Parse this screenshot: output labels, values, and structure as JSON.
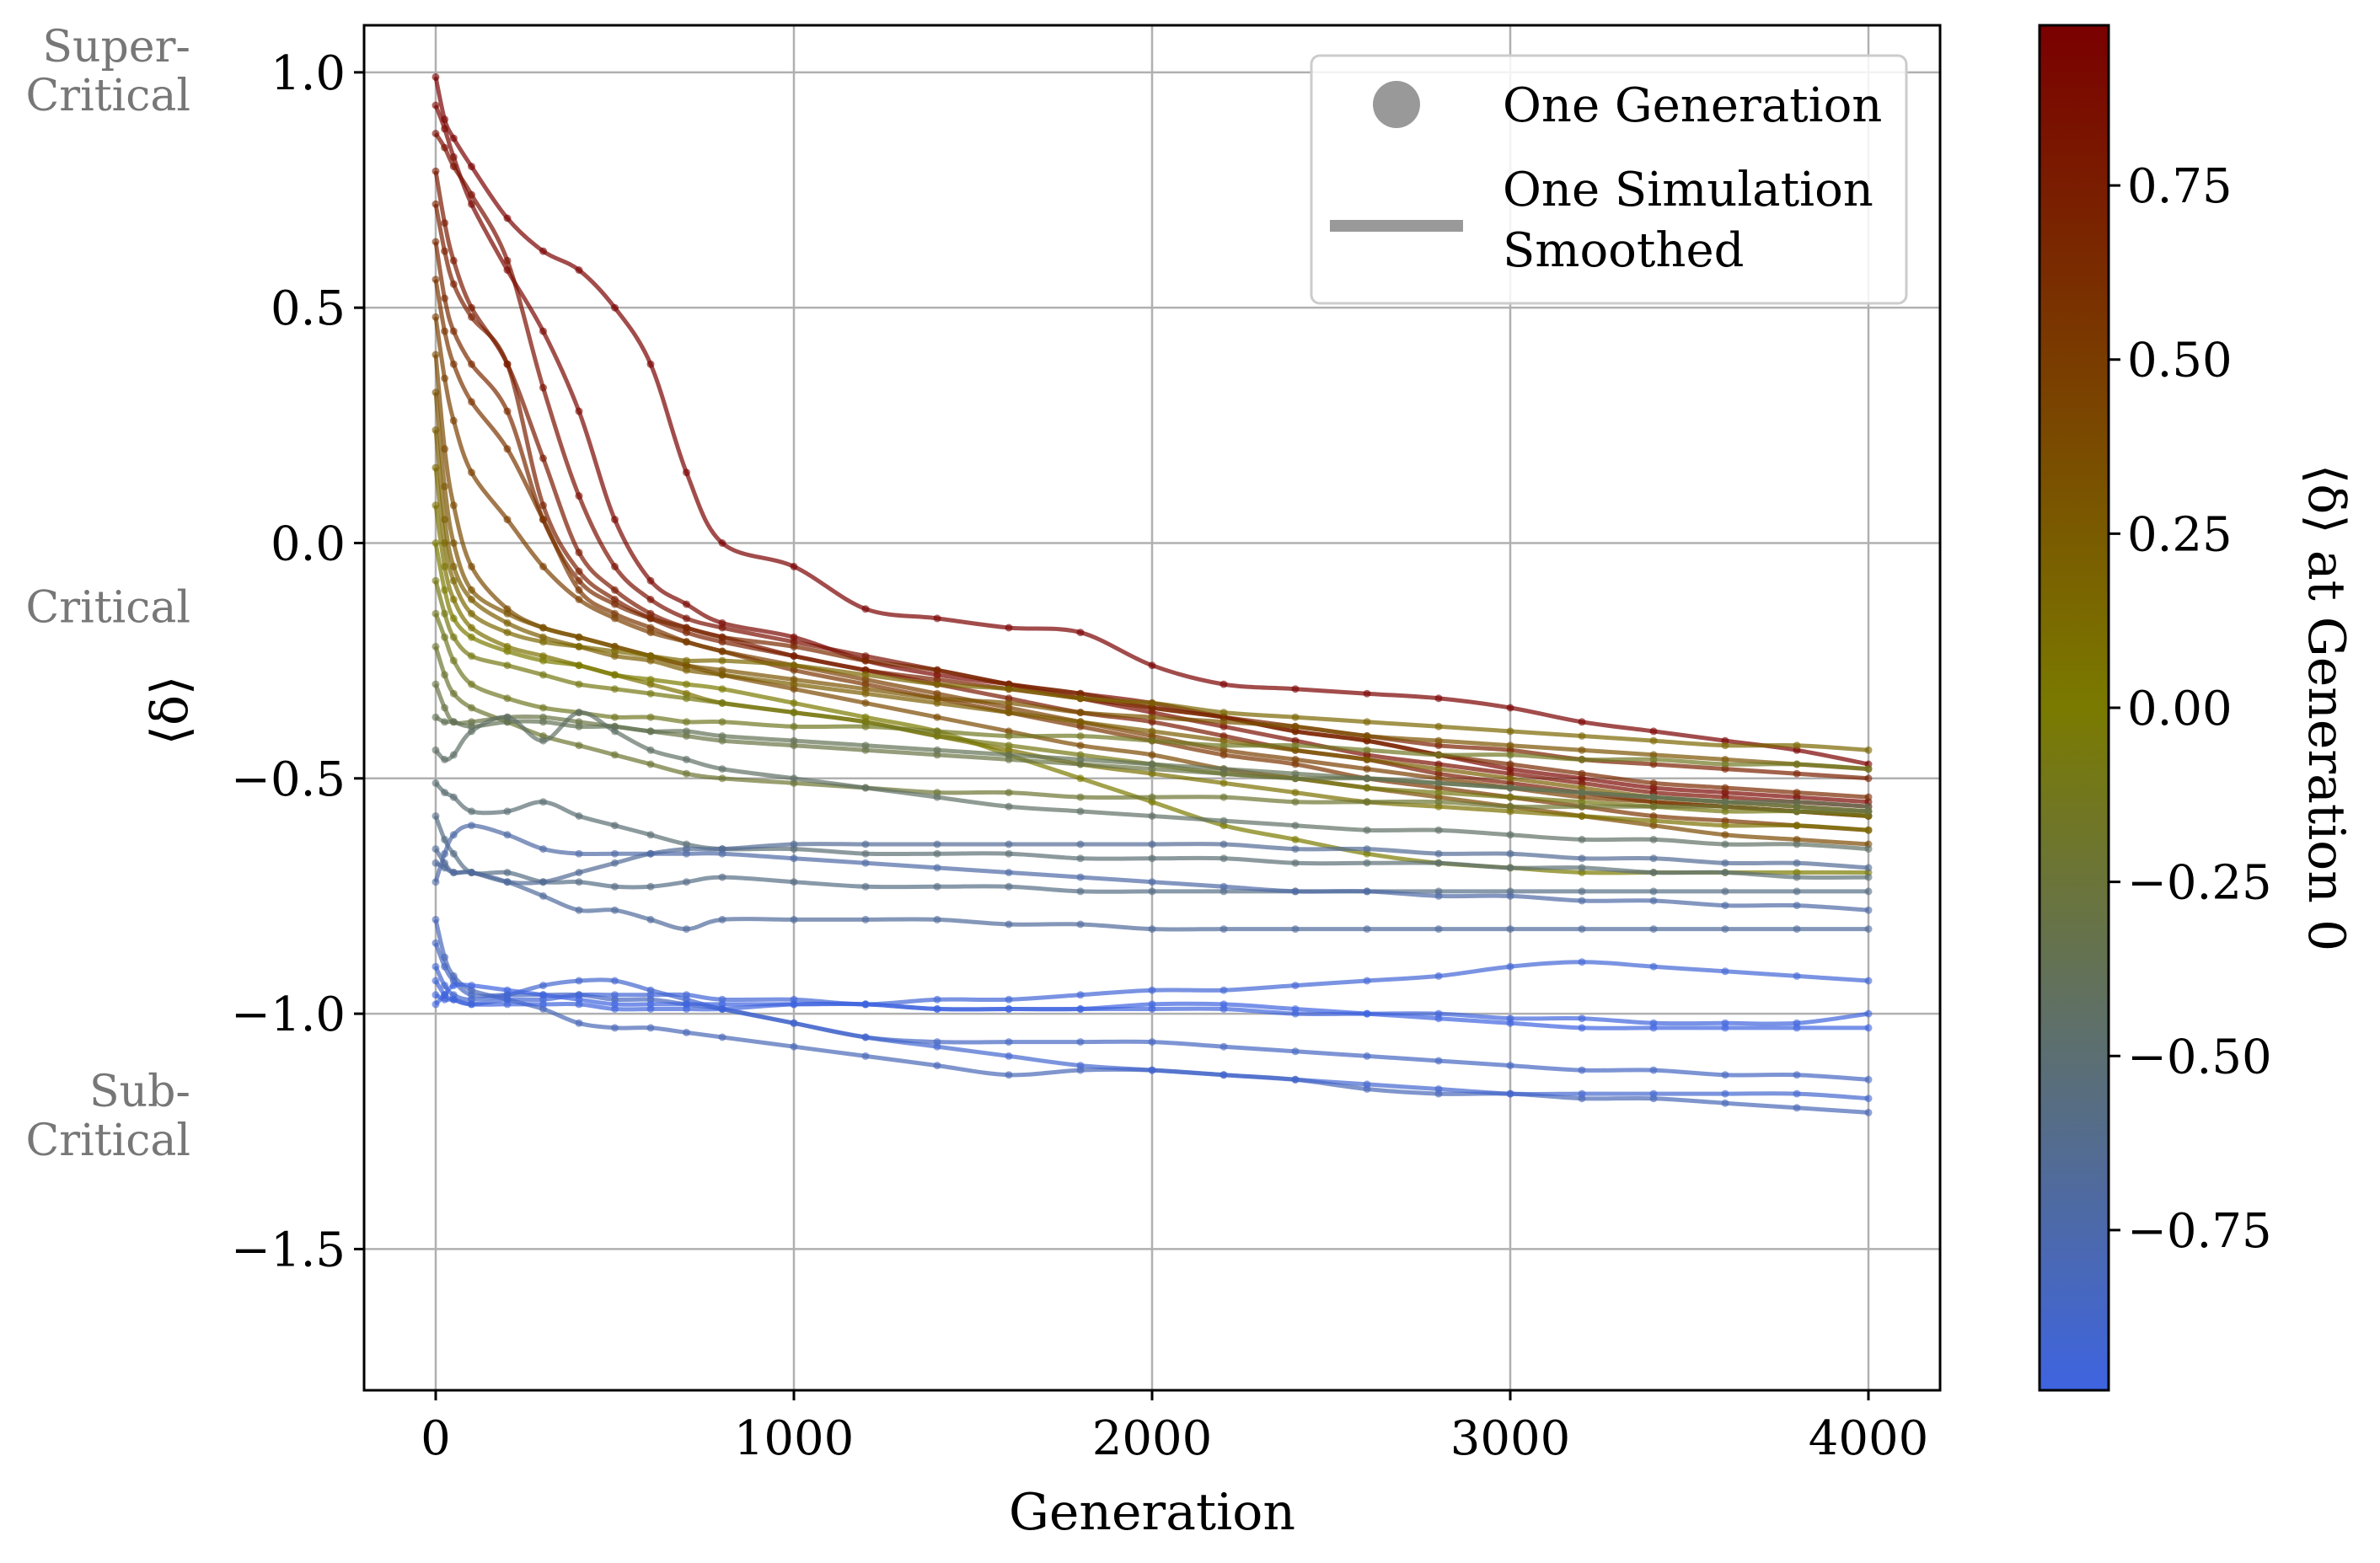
{
  "chart_data": {
    "type": "line",
    "xlabel": "Generation",
    "ylabel": "⟨δ⟩",
    "xlim": [
      -200,
      4200
    ],
    "ylim": [
      -1.8,
      1.1
    ],
    "xticks": [
      0,
      1000,
      2000,
      3000,
      4000
    ],
    "xtick_labels": [
      "0",
      "1000",
      "2000",
      "3000",
      "4000"
    ],
    "yticks": [
      1.0,
      0.5,
      0.0,
      -0.5,
      -1.0,
      -1.5
    ],
    "ytick_labels": [
      "1.0",
      "0.5",
      "0.0",
      "−0.5",
      "−1.0",
      "−1.5"
    ],
    "grid": true,
    "region_labels": [
      {
        "y": 1.0,
        "lines": [
          "Super-",
          "Critical"
        ]
      },
      {
        "y": -0.14,
        "lines": [
          "Critical"
        ]
      },
      {
        "y": -1.22,
        "lines": [
          "Sub-",
          "Critical"
        ]
      }
    ],
    "legend": {
      "placement": "top-right",
      "entries": [
        {
          "marker": "dot",
          "lines": [
            "One Generation"
          ]
        },
        {
          "marker": "line",
          "lines": [
            "One Simulation",
            "Smoothed"
          ]
        }
      ]
    },
    "colorbar": {
      "label": "⟨δ⟩ at Generation 0",
      "range": [
        -0.98,
        0.98
      ],
      "ticks": [
        0.75,
        0.5,
        0.25,
        0.0,
        -0.25,
        -0.5,
        -0.75
      ],
      "tick_labels": [
        "0.75",
        "0.50",
        "0.25",
        "0.00",
        "−0.25",
        "−0.50",
        "−0.75"
      ],
      "stops": [
        "#3e64e0",
        "#7a7a00",
        "#7a0000"
      ]
    },
    "x": [
      0,
      25,
      50,
      100,
      200,
      300,
      400,
      500,
      600,
      700,
      800,
      1000,
      1200,
      1400,
      1600,
      1800,
      2000,
      2200,
      2400,
      2600,
      2800,
      3000,
      3200,
      3400,
      3600,
      3800,
      4000
    ],
    "series": [
      {
        "g0": 0.99,
        "values": [
          0.99,
          0.9,
          0.86,
          0.8,
          0.69,
          0.62,
          0.58,
          0.5,
          0.38,
          0.15,
          0.0,
          -0.05,
          -0.14,
          -0.16,
          -0.18,
          -0.19,
          -0.26,
          -0.3,
          -0.31,
          -0.32,
          -0.33,
          -0.35,
          -0.38,
          -0.4,
          -0.42,
          -0.44,
          -0.47
        ]
      },
      {
        "g0": 0.93,
        "values": [
          0.93,
          0.88,
          0.82,
          0.72,
          0.58,
          0.45,
          0.28,
          0.05,
          -0.08,
          -0.13,
          -0.17,
          -0.2,
          -0.25,
          -0.28,
          -0.3,
          -0.32,
          -0.34,
          -0.37,
          -0.4,
          -0.42,
          -0.45,
          -0.48,
          -0.5,
          -0.52,
          -0.53,
          -0.54,
          -0.55
        ]
      },
      {
        "g0": 0.87,
        "values": [
          0.87,
          0.84,
          0.8,
          0.74,
          0.6,
          0.33,
          0.1,
          -0.05,
          -0.12,
          -0.16,
          -0.18,
          -0.21,
          -0.24,
          -0.27,
          -0.3,
          -0.33,
          -0.36,
          -0.39,
          -0.42,
          -0.45,
          -0.47,
          -0.49,
          -0.51,
          -0.53,
          -0.54,
          -0.55,
          -0.56
        ]
      },
      {
        "g0": 0.79,
        "values": [
          0.79,
          0.68,
          0.6,
          0.5,
          0.38,
          0.18,
          -0.02,
          -0.1,
          -0.15,
          -0.18,
          -0.2,
          -0.24,
          -0.27,
          -0.3,
          -0.33,
          -0.36,
          -0.38,
          -0.41,
          -0.44,
          -0.46,
          -0.49,
          -0.51,
          -0.53,
          -0.55,
          -0.56,
          -0.57,
          -0.58
        ]
      },
      {
        "g0": 0.72,
        "values": [
          0.72,
          0.62,
          0.55,
          0.48,
          0.38,
          0.08,
          -0.06,
          -0.12,
          -0.16,
          -0.19,
          -0.21,
          -0.24,
          -0.27,
          -0.29,
          -0.31,
          -0.33,
          -0.35,
          -0.37,
          -0.39,
          -0.41,
          -0.43,
          -0.44,
          -0.46,
          -0.47,
          -0.48,
          -0.49,
          -0.5
        ]
      },
      {
        "g0": 0.64,
        "values": [
          0.64,
          0.52,
          0.45,
          0.38,
          0.28,
          0.05,
          -0.08,
          -0.13,
          -0.16,
          -0.18,
          -0.2,
          -0.22,
          -0.25,
          -0.27,
          -0.3,
          -0.32,
          -0.35,
          -0.37,
          -0.4,
          -0.42,
          -0.45,
          -0.47,
          -0.49,
          -0.51,
          -0.52,
          -0.53,
          -0.54
        ]
      },
      {
        "g0": 0.56,
        "values": [
          0.56,
          0.45,
          0.38,
          0.3,
          0.2,
          0.05,
          -0.1,
          -0.15,
          -0.18,
          -0.21,
          -0.23,
          -0.27,
          -0.3,
          -0.33,
          -0.36,
          -0.39,
          -0.42,
          -0.45,
          -0.47,
          -0.5,
          -0.52,
          -0.54,
          -0.56,
          -0.58,
          -0.59,
          -0.6,
          -0.61
        ]
      },
      {
        "g0": 0.48,
        "values": [
          0.48,
          0.35,
          0.26,
          0.15,
          0.05,
          -0.05,
          -0.12,
          -0.16,
          -0.19,
          -0.21,
          -0.23,
          -0.26,
          -0.29,
          -0.32,
          -0.35,
          -0.38,
          -0.41,
          -0.44,
          -0.46,
          -0.48,
          -0.5,
          -0.52,
          -0.54,
          -0.55,
          -0.56,
          -0.57,
          -0.58
        ]
      },
      {
        "g0": 0.4,
        "values": [
          0.4,
          0.2,
          0.08,
          -0.05,
          -0.14,
          -0.18,
          -0.2,
          -0.22,
          -0.24,
          -0.26,
          -0.28,
          -0.31,
          -0.34,
          -0.37,
          -0.4,
          -0.43,
          -0.45,
          -0.48,
          -0.5,
          -0.52,
          -0.54,
          -0.56,
          -0.58,
          -0.6,
          -0.62,
          -0.63,
          -0.64
        ]
      },
      {
        "g0": 0.32,
        "values": [
          0.32,
          0.12,
          0.0,
          -0.1,
          -0.15,
          -0.18,
          -0.2,
          -0.22,
          -0.24,
          -0.26,
          -0.27,
          -0.29,
          -0.31,
          -0.33,
          -0.34,
          -0.36,
          -0.37,
          -0.38,
          -0.39,
          -0.41,
          -0.42,
          -0.43,
          -0.44,
          -0.45,
          -0.46,
          -0.47,
          -0.48
        ]
      },
      {
        "g0": 0.24,
        "values": [
          0.24,
          0.05,
          -0.05,
          -0.12,
          -0.17,
          -0.2,
          -0.22,
          -0.24,
          -0.25,
          -0.27,
          -0.28,
          -0.3,
          -0.32,
          -0.34,
          -0.36,
          -0.38,
          -0.4,
          -0.42,
          -0.44,
          -0.46,
          -0.48,
          -0.5,
          -0.52,
          -0.54,
          -0.55,
          -0.56,
          -0.57
        ]
      },
      {
        "g0": 0.16,
        "values": [
          0.16,
          0.0,
          -0.08,
          -0.15,
          -0.19,
          -0.21,
          -0.22,
          -0.23,
          -0.24,
          -0.25,
          -0.25,
          -0.26,
          -0.28,
          -0.3,
          -0.31,
          -0.33,
          -0.34,
          -0.36,
          -0.37,
          -0.38,
          -0.39,
          -0.4,
          -0.41,
          -0.42,
          -0.43,
          -0.43,
          -0.44
        ]
      },
      {
        "g0": 0.08,
        "values": [
          0.08,
          -0.05,
          -0.12,
          -0.18,
          -0.22,
          -0.24,
          -0.26,
          -0.28,
          -0.3,
          -0.32,
          -0.34,
          -0.36,
          -0.38,
          -0.41,
          -0.44,
          -0.47,
          -0.49,
          -0.51,
          -0.53,
          -0.55,
          -0.56,
          -0.57,
          -0.58,
          -0.59,
          -0.6,
          -0.6,
          -0.61
        ]
      },
      {
        "g0": 0.0,
        "values": [
          0.0,
          -0.1,
          -0.16,
          -0.2,
          -0.23,
          -0.25,
          -0.26,
          -0.28,
          -0.29,
          -0.3,
          -0.31,
          -0.34,
          -0.37,
          -0.4,
          -0.45,
          -0.5,
          -0.55,
          -0.6,
          -0.63,
          -0.66,
          -0.68,
          -0.69,
          -0.7,
          -0.7,
          -0.7,
          -0.7,
          -0.7
        ]
      },
      {
        "g0": -0.08,
        "values": [
          -0.08,
          -0.15,
          -0.2,
          -0.24,
          -0.26,
          -0.28,
          -0.3,
          -0.31,
          -0.32,
          -0.33,
          -0.34,
          -0.36,
          -0.38,
          -0.41,
          -0.43,
          -0.45,
          -0.47,
          -0.49,
          -0.5,
          -0.52,
          -0.53,
          -0.54,
          -0.55,
          -0.56,
          -0.57,
          -0.57,
          -0.58
        ]
      },
      {
        "g0": -0.15,
        "values": [
          -0.15,
          -0.2,
          -0.25,
          -0.3,
          -0.33,
          -0.35,
          -0.36,
          -0.37,
          -0.37,
          -0.38,
          -0.38,
          -0.39,
          -0.39,
          -0.4,
          -0.41,
          -0.41,
          -0.42,
          -0.43,
          -0.43,
          -0.44,
          -0.45,
          -0.45,
          -0.46,
          -0.46,
          -0.47,
          -0.47,
          -0.48
        ]
      },
      {
        "g0": -0.22,
        "values": [
          -0.22,
          -0.28,
          -0.32,
          -0.35,
          -0.38,
          -0.41,
          -0.43,
          -0.45,
          -0.47,
          -0.49,
          -0.5,
          -0.51,
          -0.52,
          -0.53,
          -0.53,
          -0.54,
          -0.54,
          -0.54,
          -0.55,
          -0.55,
          -0.55,
          -0.56,
          -0.56,
          -0.56,
          -0.56,
          -0.57,
          -0.57
        ]
      },
      {
        "g0": -0.3,
        "values": [
          -0.3,
          -0.35,
          -0.38,
          -0.38,
          -0.37,
          -0.37,
          -0.38,
          -0.39,
          -0.4,
          -0.41,
          -0.42,
          -0.43,
          -0.44,
          -0.45,
          -0.46,
          -0.47,
          -0.48,
          -0.49,
          -0.5,
          -0.5,
          -0.51,
          -0.52,
          -0.53,
          -0.54,
          -0.55,
          -0.56,
          -0.57
        ]
      },
      {
        "g0": -0.37,
        "values": [
          -0.37,
          -0.38,
          -0.38,
          -0.39,
          -0.38,
          -0.38,
          -0.39,
          -0.39,
          -0.4,
          -0.4,
          -0.41,
          -0.42,
          -0.43,
          -0.44,
          -0.45,
          -0.46,
          -0.47,
          -0.48,
          -0.49,
          -0.5,
          -0.51,
          -0.52,
          -0.53,
          -0.54,
          -0.55,
          -0.55,
          -0.56
        ]
      },
      {
        "g0": -0.44,
        "values": [
          -0.44,
          -0.46,
          -0.45,
          -0.4,
          -0.37,
          -0.42,
          -0.36,
          -0.4,
          -0.44,
          -0.46,
          -0.48,
          -0.5,
          -0.52,
          -0.54,
          -0.56,
          -0.57,
          -0.58,
          -0.59,
          -0.6,
          -0.61,
          -0.61,
          -0.62,
          -0.63,
          -0.63,
          -0.64,
          -0.64,
          -0.65
        ]
      },
      {
        "g0": -0.51,
        "values": [
          -0.51,
          -0.53,
          -0.54,
          -0.57,
          -0.57,
          -0.55,
          -0.58,
          -0.6,
          -0.62,
          -0.64,
          -0.65,
          -0.65,
          -0.66,
          -0.66,
          -0.66,
          -0.67,
          -0.67,
          -0.67,
          -0.68,
          -0.68,
          -0.68,
          -0.69,
          -0.69,
          -0.7,
          -0.7,
          -0.71,
          -0.71
        ]
      },
      {
        "g0": -0.58,
        "values": [
          -0.58,
          -0.63,
          -0.66,
          -0.7,
          -0.7,
          -0.72,
          -0.72,
          -0.73,
          -0.73,
          -0.72,
          -0.71,
          -0.72,
          -0.73,
          -0.73,
          -0.73,
          -0.74,
          -0.74,
          -0.74,
          -0.74,
          -0.74,
          -0.74,
          -0.74,
          -0.74,
          -0.74,
          -0.74,
          -0.74,
          -0.74
        ]
      },
      {
        "g0": -0.65,
        "values": [
          -0.65,
          -0.68,
          -0.7,
          -0.7,
          -0.72,
          -0.72,
          -0.7,
          -0.68,
          -0.66,
          -0.65,
          -0.65,
          -0.64,
          -0.64,
          -0.64,
          -0.64,
          -0.64,
          -0.64,
          -0.64,
          -0.65,
          -0.65,
          -0.66,
          -0.66,
          -0.67,
          -0.67,
          -0.68,
          -0.68,
          -0.69
        ]
      },
      {
        "g0": -0.68,
        "values": [
          -0.68,
          -0.69,
          -0.7,
          -0.7,
          -0.72,
          -0.75,
          -0.78,
          -0.78,
          -0.8,
          -0.82,
          -0.8,
          -0.8,
          -0.8,
          -0.8,
          -0.81,
          -0.81,
          -0.82,
          -0.82,
          -0.82,
          -0.82,
          -0.82,
          -0.82,
          -0.82,
          -0.82,
          -0.82,
          -0.82,
          -0.82
        ]
      },
      {
        "g0": -0.72,
        "values": [
          -0.72,
          -0.66,
          -0.62,
          -0.6,
          -0.62,
          -0.65,
          -0.66,
          -0.66,
          -0.66,
          -0.66,
          -0.66,
          -0.67,
          -0.68,
          -0.69,
          -0.7,
          -0.71,
          -0.72,
          -0.73,
          -0.74,
          -0.74,
          -0.75,
          -0.75,
          -0.76,
          -0.76,
          -0.77,
          -0.77,
          -0.78
        ]
      },
      {
        "g0": -0.8,
        "values": [
          -0.8,
          -0.88,
          -0.92,
          -0.95,
          -0.97,
          -0.99,
          -1.02,
          -1.03,
          -1.03,
          -1.04,
          -1.05,
          -1.07,
          -1.09,
          -1.11,
          -1.13,
          -1.12,
          -1.12,
          -1.13,
          -1.14,
          -1.16,
          -1.17,
          -1.17,
          -1.18,
          -1.18,
          -1.19,
          -1.2,
          -1.21
        ]
      },
      {
        "g0": -0.85,
        "values": [
          -0.85,
          -0.9,
          -0.93,
          -0.96,
          -0.96,
          -0.96,
          -0.96,
          -0.97,
          -0.97,
          -0.98,
          -0.99,
          -1.02,
          -1.05,
          -1.06,
          -1.06,
          -1.06,
          -1.06,
          -1.07,
          -1.08,
          -1.09,
          -1.1,
          -1.11,
          -1.12,
          -1.12,
          -1.13,
          -1.13,
          -1.14
        ]
      },
      {
        "g0": -0.9,
        "values": [
          -0.9,
          -0.94,
          -0.96,
          -0.97,
          -0.96,
          -0.94,
          -0.93,
          -0.93,
          -0.95,
          -0.97,
          -0.99,
          -1.02,
          -1.05,
          -1.07,
          -1.09,
          -1.11,
          -1.12,
          -1.13,
          -1.14,
          -1.15,
          -1.16,
          -1.17,
          -1.17,
          -1.17,
          -1.17,
          -1.17,
          -1.18
        ]
      },
      {
        "g0": -0.93,
        "values": [
          -0.93,
          -0.96,
          -0.97,
          -0.98,
          -0.97,
          -0.97,
          -0.96,
          -0.96,
          -0.96,
          -0.96,
          -0.97,
          -0.97,
          -0.98,
          -0.97,
          -0.97,
          -0.96,
          -0.95,
          -0.95,
          -0.94,
          -0.93,
          -0.92,
          -0.9,
          -0.89,
          -0.9,
          -0.91,
          -0.92,
          -0.93
        ]
      },
      {
        "g0": -0.96,
        "values": [
          -0.96,
          -0.97,
          -0.97,
          -0.98,
          -0.98,
          -0.98,
          -0.98,
          -0.99,
          -0.99,
          -0.99,
          -0.99,
          -0.98,
          -0.98,
          -0.99,
          -0.99,
          -0.99,
          -0.99,
          -0.99,
          -1.0,
          -1.0,
          -1.0,
          -1.01,
          -1.01,
          -1.02,
          -1.02,
          -1.02,
          -1.0
        ]
      },
      {
        "g0": -0.98,
        "values": [
          -0.98,
          -0.96,
          -0.94,
          -0.94,
          -0.95,
          -0.96,
          -0.97,
          -0.98,
          -0.98,
          -0.98,
          -0.98,
          -0.98,
          -0.98,
          -0.99,
          -0.99,
          -0.99,
          -0.98,
          -0.98,
          -0.99,
          -1.0,
          -1.01,
          -1.02,
          -1.03,
          -1.03,
          -1.03,
          -1.03,
          -1.03
        ]
      }
    ]
  }
}
